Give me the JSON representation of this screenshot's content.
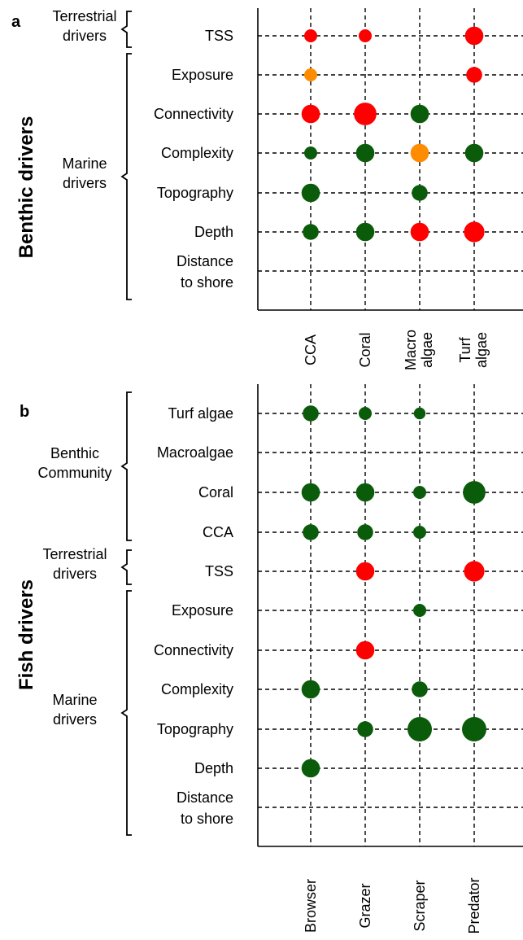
{
  "panels": {
    "a": {
      "letter": "a",
      "side_title": "Benthic drivers"
    },
    "b": {
      "letter": "b",
      "side_title": "Fish drivers"
    }
  },
  "colors": {
    "red": "#ff0000",
    "orange": "#ff8c00",
    "green": "#0a5c0a"
  },
  "chart_data": [
    {
      "type": "scatter",
      "panel": "a",
      "categories_y": [
        "TSS",
        "Exposure",
        "Connectivity",
        "Complexity",
        "Topography",
        "Depth",
        "Distance to shore"
      ],
      "categories_x": [
        "CCA",
        "Coral",
        "Macro algae",
        "Turf algae"
      ],
      "x_labels": [
        [
          "CCA"
        ],
        [
          "Coral"
        ],
        [
          "Macro",
          "algae"
        ],
        [
          "Turf",
          "algae"
        ]
      ],
      "y_labels": [
        [
          "TSS"
        ],
        [
          "Exposure"
        ],
        [
          "Connectivity"
        ],
        [
          "Complexity"
        ],
        [
          "Topography"
        ],
        [
          "Depth"
        ],
        [
          "Distance",
          "to shore"
        ]
      ],
      "groups": [
        {
          "label_lines": [
            "Terrestrial",
            "drivers"
          ],
          "rows": [
            "TSS"
          ]
        },
        {
          "label_lines": [
            "Marine",
            "drivers"
          ],
          "rows": [
            "Exposure",
            "Connectivity",
            "Complexity",
            "Topography",
            "Depth",
            "Distance to shore"
          ]
        }
      ],
      "points": [
        {
          "x": "CCA",
          "y": "TSS",
          "color": "red",
          "size": 1
        },
        {
          "x": "Coral",
          "y": "TSS",
          "color": "red",
          "size": 1
        },
        {
          "x": "Turf algae",
          "y": "TSS",
          "color": "red",
          "size": 2
        },
        {
          "x": "CCA",
          "y": "Exposure",
          "color": "orange",
          "size": 1
        },
        {
          "x": "Turf algae",
          "y": "Exposure",
          "color": "red",
          "size": 1.5
        },
        {
          "x": "CCA",
          "y": "Connectivity",
          "color": "red",
          "size": 2
        },
        {
          "x": "Coral",
          "y": "Connectivity",
          "color": "red",
          "size": 3
        },
        {
          "x": "Macro algae",
          "y": "Connectivity",
          "color": "green",
          "size": 2
        },
        {
          "x": "CCA",
          "y": "Complexity",
          "color": "green",
          "size": 1
        },
        {
          "x": "Coral",
          "y": "Complexity",
          "color": "green",
          "size": 2
        },
        {
          "x": "Macro algae",
          "y": "Complexity",
          "color": "orange",
          "size": 2
        },
        {
          "x": "Turf algae",
          "y": "Complexity",
          "color": "green",
          "size": 2
        },
        {
          "x": "CCA",
          "y": "Topography",
          "color": "green",
          "size": 2
        },
        {
          "x": "Macro algae",
          "y": "Topography",
          "color": "green",
          "size": 1.5
        },
        {
          "x": "CCA",
          "y": "Depth",
          "color": "green",
          "size": 1.5
        },
        {
          "x": "Coral",
          "y": "Depth",
          "color": "green",
          "size": 2
        },
        {
          "x": "Macro algae",
          "y": "Depth",
          "color": "red",
          "size": 2
        },
        {
          "x": "Turf algae",
          "y": "Depth",
          "color": "red",
          "size": 2.5
        }
      ]
    },
    {
      "type": "scatter",
      "panel": "b",
      "categories_y": [
        "Turf algae",
        "Macroalgae",
        "Coral",
        "CCA",
        "TSS",
        "Exposure",
        "Connectivity",
        "Complexity",
        "Topography",
        "Depth",
        "Distance to shore"
      ],
      "categories_x": [
        "Browser",
        "Grazer",
        "Scraper",
        "Predator"
      ],
      "x_labels": [
        [
          "Browser"
        ],
        [
          "Grazer"
        ],
        [
          "Scraper"
        ],
        [
          "Predator"
        ]
      ],
      "y_labels": [
        [
          "Turf algae"
        ],
        [
          "Macroalgae"
        ],
        [
          "Coral"
        ],
        [
          "CCA"
        ],
        [
          "TSS"
        ],
        [
          "Exposure"
        ],
        [
          "Connectivity"
        ],
        [
          "Complexity"
        ],
        [
          "Topography"
        ],
        [
          "Depth"
        ],
        [
          "Distance",
          "to shore"
        ]
      ],
      "groups": [
        {
          "label_lines": [
            "Benthic",
            "Community"
          ],
          "rows": [
            "Turf algae",
            "Macroalgae",
            "Coral",
            "CCA"
          ]
        },
        {
          "label_lines": [
            "Terrestrial",
            "drivers"
          ],
          "rows": [
            "TSS"
          ]
        },
        {
          "label_lines": [
            "Marine",
            "drivers"
          ],
          "rows": [
            "Exposure",
            "Connectivity",
            "Complexity",
            "Topography",
            "Depth",
            "Distance to shore"
          ]
        }
      ],
      "points": [
        {
          "x": "Browser",
          "y": "Turf algae",
          "color": "green",
          "size": 1.5
        },
        {
          "x": "Grazer",
          "y": "Turf algae",
          "color": "green",
          "size": 1
        },
        {
          "x": "Scraper",
          "y": "Turf algae",
          "color": "green",
          "size": 0.8
        },
        {
          "x": "Browser",
          "y": "Coral",
          "color": "green",
          "size": 2
        },
        {
          "x": "Grazer",
          "y": "Coral",
          "color": "green",
          "size": 2
        },
        {
          "x": "Scraper",
          "y": "Coral",
          "color": "green",
          "size": 1
        },
        {
          "x": "Predator",
          "y": "Coral",
          "color": "green",
          "size": 3
        },
        {
          "x": "Browser",
          "y": "CCA",
          "color": "green",
          "size": 1.5
        },
        {
          "x": "Grazer",
          "y": "CCA",
          "color": "green",
          "size": 1.5
        },
        {
          "x": "Scraper",
          "y": "CCA",
          "color": "green",
          "size": 1
        },
        {
          "x": "Grazer",
          "y": "TSS",
          "color": "red",
          "size": 2
        },
        {
          "x": "Predator",
          "y": "TSS",
          "color": "red",
          "size": 2.5
        },
        {
          "x": "Scraper",
          "y": "Exposure",
          "color": "green",
          "size": 1
        },
        {
          "x": "Grazer",
          "y": "Connectivity",
          "color": "red",
          "size": 2
        },
        {
          "x": "Browser",
          "y": "Complexity",
          "color": "green",
          "size": 2
        },
        {
          "x": "Scraper",
          "y": "Complexity",
          "color": "green",
          "size": 1.5
        },
        {
          "x": "Grazer",
          "y": "Topography",
          "color": "green",
          "size": 1.5
        },
        {
          "x": "Scraper",
          "y": "Topography",
          "color": "green",
          "size": 3.5
        },
        {
          "x": "Predator",
          "y": "Topography",
          "color": "green",
          "size": 3.5
        },
        {
          "x": "Browser",
          "y": "Depth",
          "color": "green",
          "size": 2
        }
      ]
    }
  ]
}
